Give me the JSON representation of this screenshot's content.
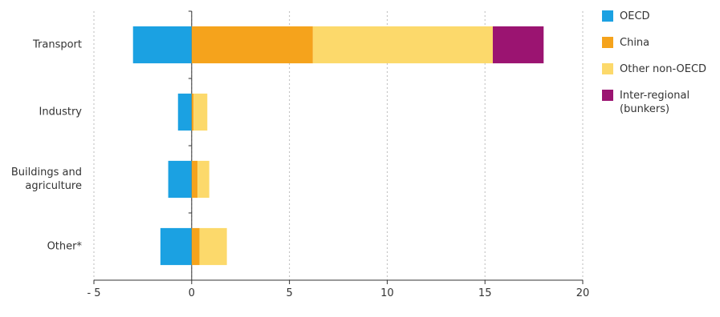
{
  "chart_data": {
    "type": "stacked-bar-horizontal",
    "categories": [
      "Transport",
      "Industry",
      "Buildings and agriculture",
      "Other*"
    ],
    "series": [
      {
        "name": "OECD",
        "color": "#1ba1e2",
        "values": [
          -3.0,
          -0.7,
          -1.2,
          -1.6
        ]
      },
      {
        "name": "China",
        "color": "#f5a31c",
        "values": [
          6.2,
          0.1,
          0.3,
          0.4
        ]
      },
      {
        "name": "Other non-OECD",
        "color": "#fcd96b",
        "values": [
          9.2,
          0.7,
          0.6,
          1.4
        ]
      },
      {
        "name": "Inter-regional (bunkers)",
        "color": "#9b1471",
        "values": [
          2.6,
          null,
          null,
          null
        ]
      }
    ],
    "xlim": [
      -5,
      20
    ],
    "xticks": [
      {
        "value": -5,
        "label": "- 5"
      },
      0,
      5,
      10,
      15,
      20
    ],
    "grid": true
  }
}
